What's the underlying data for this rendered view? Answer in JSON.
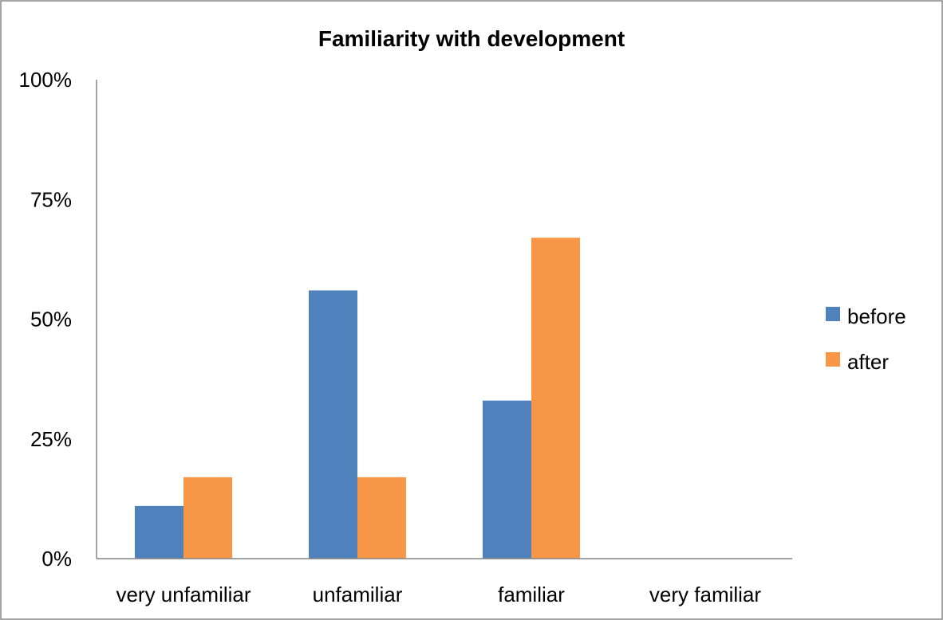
{
  "chart_data": {
    "type": "bar",
    "title": "Familiarity with development",
    "xlabel": "",
    "ylabel": "",
    "categories": [
      "very unfamiliar",
      "unfamiliar",
      "familiar",
      "very familiar"
    ],
    "series": [
      {
        "name": "before",
        "color": "#4F81BD",
        "values": [
          11,
          56,
          33,
          0
        ]
      },
      {
        "name": "after",
        "color": "#F79646",
        "values": [
          17,
          17,
          67,
          0
        ]
      }
    ],
    "ylim": [
      0,
      100
    ],
    "yticks": [
      "0%",
      "25%",
      "50%",
      "75%",
      "100%"
    ],
    "ytick_values": [
      0,
      25,
      50,
      75,
      100
    ],
    "grid": false,
    "legend_position": "right"
  }
}
